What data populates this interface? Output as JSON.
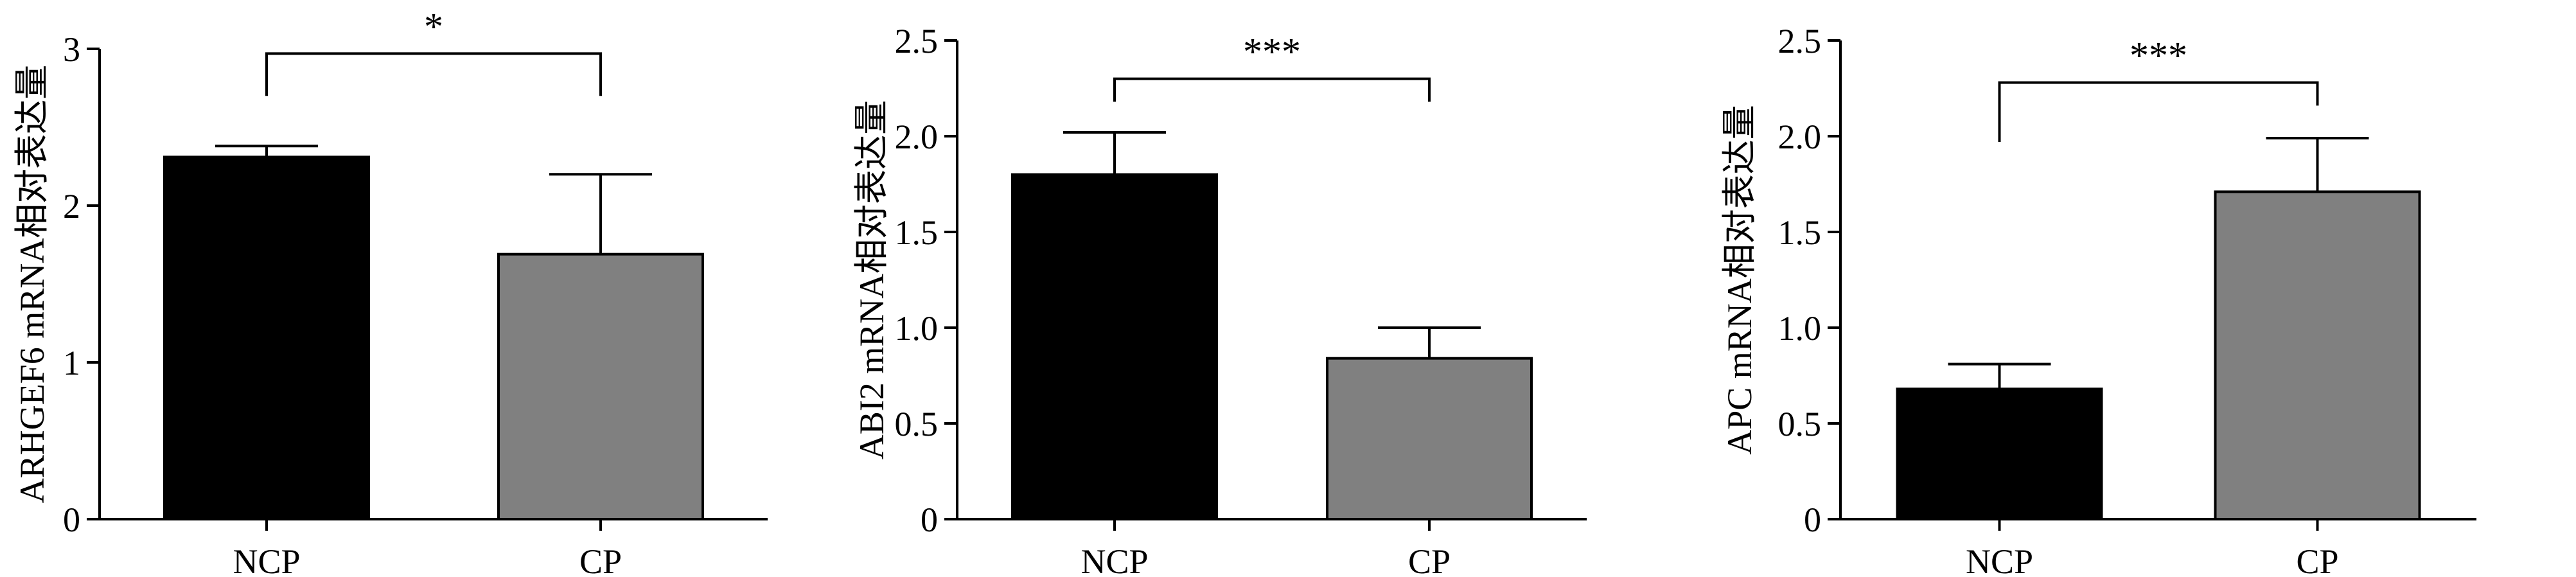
{
  "chart_data": [
    {
      "type": "bar",
      "categories": [
        "NCP",
        "CP"
      ],
      "values": [
        2.31,
        1.69
      ],
      "errors": [
        0.07,
        0.51
      ],
      "ylabel": "ARHGEF6 mRNA相对表达量",
      "ylim": [
        0,
        3
      ],
      "yticks": [
        "0",
        "1",
        "2",
        "3"
      ],
      "ytick_values": [
        0,
        1,
        2,
        3
      ],
      "significance": {
        "label": "*",
        "bracket_level": 2.97,
        "leg_levels": [
          2.7,
          2.7
        ]
      },
      "colors": [
        "#000000",
        "#808080"
      ],
      "grid": false
    },
    {
      "type": "bar",
      "categories": [
        "NCP",
        "CP"
      ],
      "values": [
        1.8,
        0.84
      ],
      "errors": [
        0.22,
        0.16
      ],
      "ylabel": "ABI2 mRNA相对表达量",
      "ylim": [
        0,
        2.5
      ],
      "yticks": [
        "0",
        "0.5",
        "1.0",
        "1.5",
        "2.0",
        "2.5"
      ],
      "ytick_values": [
        0,
        0.5,
        1.0,
        1.5,
        2.0,
        2.5
      ],
      "significance": {
        "label": "***",
        "bracket_level": 2.3,
        "leg_levels": [
          2.18,
          2.18
        ]
      },
      "colors": [
        "#000000",
        "#808080"
      ],
      "grid": false
    },
    {
      "type": "bar",
      "categories": [
        "NCP",
        "CP"
      ],
      "values": [
        0.68,
        1.71
      ],
      "errors": [
        0.13,
        0.28
      ],
      "ylabel": "APC mRNA相对表达量",
      "ylim": [
        0,
        2.5
      ],
      "yticks": [
        "0",
        "0.5",
        "1.0",
        "1.5",
        "2.0",
        "2.5"
      ],
      "ytick_values": [
        0,
        0.5,
        1.0,
        1.5,
        2.0,
        2.5
      ],
      "significance": {
        "label": "***",
        "bracket_level": 2.28,
        "leg_levels": [
          1.97,
          2.16
        ]
      },
      "colors": [
        "#000000",
        "#808080"
      ],
      "grid": false
    }
  ]
}
